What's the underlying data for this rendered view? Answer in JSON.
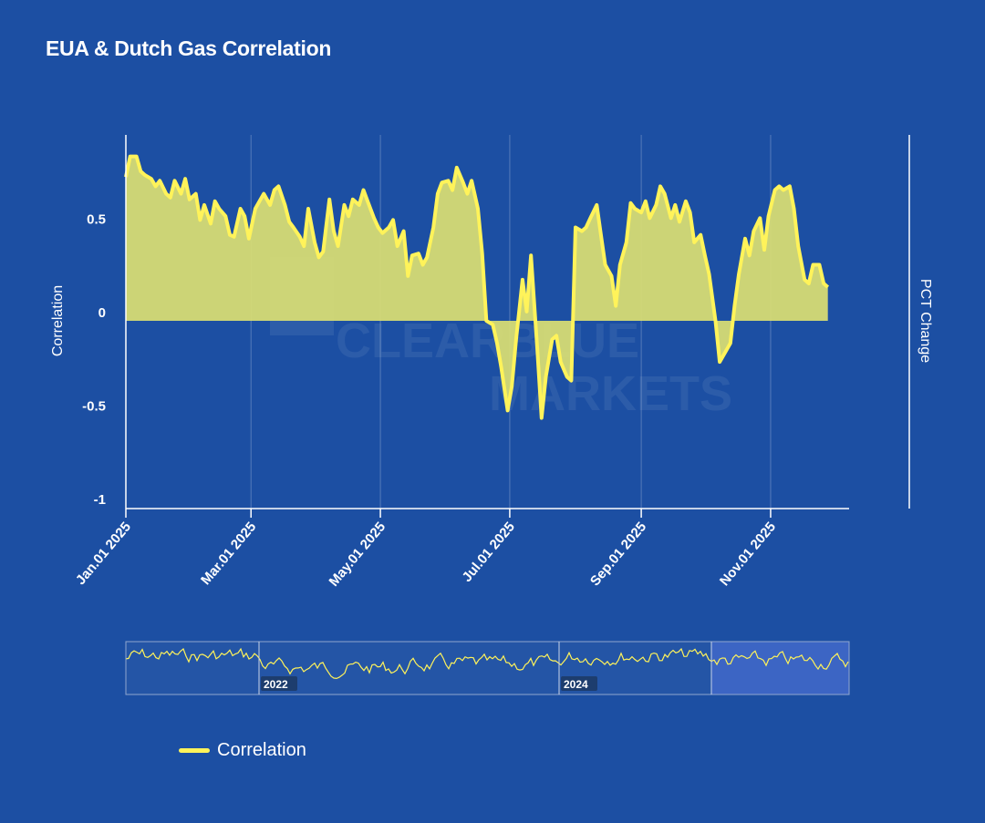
{
  "title": "EUA & Dutch Gas Correlation",
  "colors": {
    "background": "#1c4fa3",
    "line": "#fff35a",
    "fill": "#d6db74",
    "axis": "#ffffff",
    "navigator_selection": "#4169c9"
  },
  "legend": {
    "series_name": "Correlation"
  },
  "watermark": {
    "line1": "CLEARBLUE",
    "line2": "MARKETS"
  },
  "navigator": {
    "labels": [
      "2022",
      "2024"
    ]
  },
  "chart_data": {
    "type": "area",
    "title": "EUA & Dutch Gas Correlation",
    "ylabel": "Correlation",
    "y2label": "PCT Change",
    "ylim": [
      -1,
      1
    ],
    "yticks": [
      0.5,
      0,
      -0.5,
      -1
    ],
    "ytick_labels": [
      "0.5",
      "0",
      "-0.5",
      "-1"
    ],
    "xlim": [
      "2025-01-01",
      "2025-12-08"
    ],
    "xticks": [
      "2025-01-01",
      "2025-03-01",
      "2025-05-01",
      "2025-07-01",
      "2025-09-01",
      "2025-11-01"
    ],
    "xtick_labels": [
      "Jan.01 2025",
      "Mar.01 2025",
      "May.01 2025",
      "Jul.01 2025",
      "Sep.01 2025",
      "Nov.01 2025"
    ],
    "grid": true,
    "legend_position": "bottom-left",
    "series": [
      {
        "name": "Correlation",
        "points": [
          [
            "2025-01-01",
            0.77
          ],
          [
            "2025-01-03",
            0.88
          ],
          [
            "2025-01-06",
            0.88
          ],
          [
            "2025-01-08",
            0.8
          ],
          [
            "2025-01-10",
            0.78
          ],
          [
            "2025-01-13",
            0.76
          ],
          [
            "2025-01-15",
            0.72
          ],
          [
            "2025-01-17",
            0.75
          ],
          [
            "2025-01-20",
            0.68
          ],
          [
            "2025-01-22",
            0.66
          ],
          [
            "2025-01-24",
            0.75
          ],
          [
            "2025-01-27",
            0.68
          ],
          [
            "2025-01-29",
            0.76
          ],
          [
            "2025-01-31",
            0.65
          ],
          [
            "2025-02-03",
            0.68
          ],
          [
            "2025-02-05",
            0.54
          ],
          [
            "2025-02-07",
            0.62
          ],
          [
            "2025-02-10",
            0.52
          ],
          [
            "2025-02-12",
            0.64
          ],
          [
            "2025-02-14",
            0.6
          ],
          [
            "2025-02-17",
            0.56
          ],
          [
            "2025-02-19",
            0.46
          ],
          [
            "2025-02-21",
            0.45
          ],
          [
            "2025-02-24",
            0.6
          ],
          [
            "2025-02-26",
            0.56
          ],
          [
            "2025-02-28",
            0.44
          ],
          [
            "2025-03-03",
            0.6
          ],
          [
            "2025-03-05",
            0.64
          ],
          [
            "2025-03-07",
            0.68
          ],
          [
            "2025-03-10",
            0.62
          ],
          [
            "2025-03-12",
            0.7
          ],
          [
            "2025-03-14",
            0.72
          ],
          [
            "2025-03-17",
            0.62
          ],
          [
            "2025-03-19",
            0.53
          ],
          [
            "2025-03-21",
            0.5
          ],
          [
            "2025-03-24",
            0.45
          ],
          [
            "2025-03-26",
            0.4
          ],
          [
            "2025-03-28",
            0.6
          ],
          [
            "2025-03-31",
            0.42
          ],
          [
            "2025-04-02",
            0.34
          ],
          [
            "2025-04-04",
            0.37
          ],
          [
            "2025-04-07",
            0.65
          ],
          [
            "2025-04-09",
            0.48
          ],
          [
            "2025-04-11",
            0.4
          ],
          [
            "2025-04-14",
            0.62
          ],
          [
            "2025-04-16",
            0.56
          ],
          [
            "2025-04-18",
            0.65
          ],
          [
            "2025-04-21",
            0.62
          ],
          [
            "2025-04-23",
            0.7
          ],
          [
            "2025-04-25",
            0.64
          ],
          [
            "2025-04-28",
            0.55
          ],
          [
            "2025-04-30",
            0.5
          ],
          [
            "2025-05-02",
            0.47
          ],
          [
            "2025-05-05",
            0.5
          ],
          [
            "2025-05-07",
            0.54
          ],
          [
            "2025-05-09",
            0.4
          ],
          [
            "2025-05-12",
            0.48
          ],
          [
            "2025-05-14",
            0.24
          ],
          [
            "2025-05-16",
            0.35
          ],
          [
            "2025-05-19",
            0.36
          ],
          [
            "2025-05-21",
            0.3
          ],
          [
            "2025-05-23",
            0.34
          ],
          [
            "2025-05-26",
            0.5
          ],
          [
            "2025-05-28",
            0.68
          ],
          [
            "2025-05-30",
            0.74
          ],
          [
            "2025-06-02",
            0.75
          ],
          [
            "2025-06-04",
            0.7
          ],
          [
            "2025-06-06",
            0.82
          ],
          [
            "2025-06-09",
            0.74
          ],
          [
            "2025-06-11",
            0.68
          ],
          [
            "2025-06-13",
            0.75
          ],
          [
            "2025-06-16",
            0.6
          ],
          [
            "2025-06-18",
            0.36
          ],
          [
            "2025-06-20",
            0.0
          ],
          [
            "2025-06-23",
            -0.02
          ],
          [
            "2025-06-25",
            -0.12
          ],
          [
            "2025-06-27",
            -0.25
          ],
          [
            "2025-06-30",
            -0.48
          ],
          [
            "2025-07-02",
            -0.35
          ],
          [
            "2025-07-04",
            -0.1
          ],
          [
            "2025-07-07",
            0.22
          ],
          [
            "2025-07-09",
            0.05
          ],
          [
            "2025-07-11",
            0.35
          ],
          [
            "2025-07-14",
            -0.15
          ],
          [
            "2025-07-16",
            -0.52
          ],
          [
            "2025-07-18",
            -0.3
          ],
          [
            "2025-07-21",
            -0.1
          ],
          [
            "2025-07-23",
            -0.08
          ],
          [
            "2025-07-25",
            -0.22
          ],
          [
            "2025-07-28",
            -0.3
          ],
          [
            "2025-07-30",
            -0.32
          ],
          [
            "2025-08-01",
            0.5
          ],
          [
            "2025-08-04",
            0.48
          ],
          [
            "2025-08-06",
            0.5
          ],
          [
            "2025-08-08",
            0.55
          ],
          [
            "2025-08-11",
            0.62
          ],
          [
            "2025-08-13",
            0.46
          ],
          [
            "2025-08-15",
            0.3
          ],
          [
            "2025-08-18",
            0.24
          ],
          [
            "2025-08-20",
            0.08
          ],
          [
            "2025-08-22",
            0.3
          ],
          [
            "2025-08-25",
            0.42
          ],
          [
            "2025-08-27",
            0.63
          ],
          [
            "2025-08-29",
            0.6
          ],
          [
            "2025-09-01",
            0.58
          ],
          [
            "2025-09-03",
            0.64
          ],
          [
            "2025-09-05",
            0.55
          ],
          [
            "2025-09-08",
            0.62
          ],
          [
            "2025-09-10",
            0.72
          ],
          [
            "2025-09-12",
            0.68
          ],
          [
            "2025-09-15",
            0.55
          ],
          [
            "2025-09-17",
            0.62
          ],
          [
            "2025-09-19",
            0.53
          ],
          [
            "2025-09-22",
            0.64
          ],
          [
            "2025-09-24",
            0.58
          ],
          [
            "2025-09-26",
            0.42
          ],
          [
            "2025-09-29",
            0.46
          ],
          [
            "2025-10-01",
            0.35
          ],
          [
            "2025-10-03",
            0.25
          ],
          [
            "2025-10-06",
            0.0
          ],
          [
            "2025-10-08",
            -0.22
          ],
          [
            "2025-10-10",
            -0.18
          ],
          [
            "2025-10-13",
            -0.12
          ],
          [
            "2025-10-15",
            0.08
          ],
          [
            "2025-10-17",
            0.25
          ],
          [
            "2025-10-20",
            0.44
          ],
          [
            "2025-10-22",
            0.35
          ],
          [
            "2025-10-24",
            0.48
          ],
          [
            "2025-10-27",
            0.55
          ],
          [
            "2025-10-29",
            0.38
          ],
          [
            "2025-10-31",
            0.56
          ],
          [
            "2025-11-03",
            0.7
          ],
          [
            "2025-11-05",
            0.72
          ],
          [
            "2025-11-07",
            0.7
          ],
          [
            "2025-11-10",
            0.72
          ],
          [
            "2025-11-12",
            0.6
          ],
          [
            "2025-11-14",
            0.4
          ],
          [
            "2025-11-17",
            0.22
          ],
          [
            "2025-11-19",
            0.2
          ],
          [
            "2025-11-21",
            0.3
          ],
          [
            "2025-11-24",
            0.3
          ],
          [
            "2025-11-26",
            0.2
          ],
          [
            "2025-11-28",
            0.18
          ]
        ]
      }
    ]
  }
}
